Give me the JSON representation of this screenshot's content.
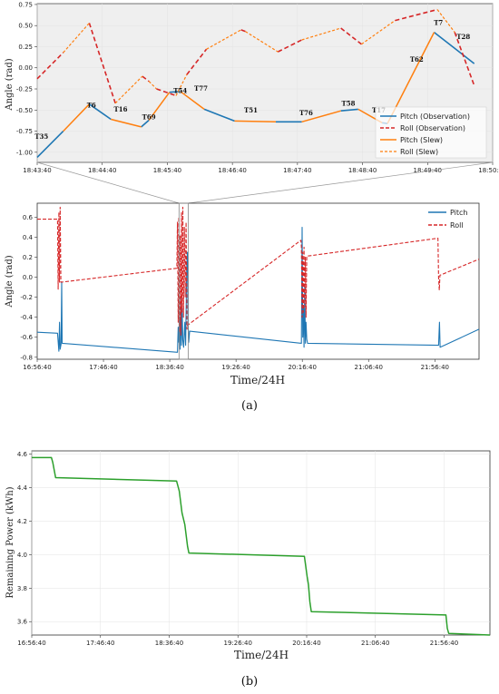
{
  "chart_data": [
    {
      "id": "top",
      "type": "line",
      "ylabel": "Angle (rad)",
      "xlabel": "",
      "background": "#efefef",
      "xlim": [
        "18:43:40",
        "18:50:40"
      ],
      "ylim": [
        -1.12,
        0.76
      ],
      "x_ticks": [
        "18:43:40",
        "18:44:40",
        "18:45:40",
        "18:46:40",
        "18:47:40",
        "18:48:40",
        "18:49:40",
        "18:50:40"
      ],
      "y_ticks": [
        "-1.00",
        "-0.75",
        "-0.50",
        "-0.25",
        "0.00",
        "0.25",
        "0.50",
        "0.75"
      ],
      "y_tick_values": [
        -1.0,
        -0.75,
        -0.5,
        -0.25,
        0.0,
        0.25,
        0.5,
        0.75
      ],
      "legend": [
        "Pitch (Observation)",
        "Roll (Observation)",
        "Pitch (Slew)",
        "Roll (Slew)"
      ],
      "legend_position": "center-right",
      "colors": {
        "pitch_obs": "#1f77b4",
        "roll_obs": "#d62728",
        "pitch_slew": "#ff7f0e",
        "roll_slew": "#ff7f0e"
      },
      "annotations": [
        {
          "label": "T35",
          "x": "18:43:44",
          "y": -0.84
        },
        {
          "label": "T6",
          "x": "18:44:30",
          "y": -0.47
        },
        {
          "label": "T16",
          "x": "18:44:57",
          "y": -0.52
        },
        {
          "label": "T69",
          "x": "18:45:23",
          "y": -0.61
        },
        {
          "label": "T54",
          "x": "18:45:52",
          "y": -0.3
        },
        {
          "label": "T77",
          "x": "18:46:11",
          "y": -0.27
        },
        {
          "label": "T51",
          "x": "18:46:57",
          "y": -0.53
        },
        {
          "label": "T76",
          "x": "18:47:48",
          "y": -0.56
        },
        {
          "label": "T58",
          "x": "18:48:27",
          "y": -0.45
        },
        {
          "label": "T17",
          "x": "18:48:55",
          "y": -0.53
        },
        {
          "label": "T62",
          "x": "18:49:30",
          "y": 0.07
        },
        {
          "label": "T7",
          "x": "18:49:50",
          "y": 0.51
        },
        {
          "label": "T28",
          "x": "18:50:13",
          "y": 0.34
        }
      ],
      "series": [
        {
          "name": "Pitch (Observation)",
          "segments": [
            [
              [
                "18:43:40",
                -1.06
              ],
              [
                "18:44:04",
                -0.75
              ]
            ],
            [
              [
                "18:44:28",
                -0.43
              ],
              [
                "18:44:48",
                -0.61
              ]
            ],
            [
              [
                "18:45:16",
                -0.7
              ],
              [
                "18:45:23",
                -0.62
              ]
            ],
            [
              [
                "18:45:42",
                -0.29
              ],
              [
                "18:45:52",
                -0.28
              ]
            ],
            [
              [
                "18:46:14",
                -0.49
              ],
              [
                "18:46:42",
                -0.63
              ]
            ],
            [
              [
                "18:47:20",
                -0.64
              ],
              [
                "18:47:44",
                -0.64
              ]
            ],
            [
              [
                "18:48:20",
                -0.51
              ],
              [
                "18:48:36",
                -0.49
              ]
            ],
            [
              [
                "18:48:58",
                -0.65
              ],
              [
                "18:49:03",
                -0.66
              ]
            ],
            [
              [
                "18:49:46",
                0.42
              ],
              [
                "18:50:23",
                0.05
              ]
            ]
          ]
        },
        {
          "name": "Roll (Observation)",
          "segments": [
            [
              [
                "18:43:40",
                -0.13
              ],
              [
                "18:44:04",
                0.18
              ]
            ],
            [
              [
                "18:44:28",
                0.53
              ],
              [
                "18:44:52",
                -0.42
              ]
            ],
            [
              [
                "18:45:17",
                -0.1
              ],
              [
                "18:45:23",
                -0.16
              ]
            ],
            [
              [
                "18:45:30",
                -0.25
              ],
              [
                "18:45:48",
                -0.33
              ]
            ],
            [
              [
                "18:45:58",
                -0.08
              ],
              [
                "18:46:16",
                0.22
              ]
            ],
            [
              [
                "18:46:48",
                0.45
              ],
              [
                "18:46:52",
                0.43
              ]
            ],
            [
              [
                "18:47:22",
                0.19
              ],
              [
                "18:47:44",
                0.33
              ]
            ],
            [
              [
                "18:48:20",
                0.47
              ],
              [
                "18:48:39",
                0.28
              ]
            ],
            [
              [
                "18:49:10",
                0.56
              ],
              [
                "18:49:49",
                0.69
              ]
            ],
            [
              [
                "18:50:05",
                0.42
              ],
              [
                "18:50:23",
                -0.21
              ]
            ]
          ]
        },
        {
          "name": "Pitch (Slew)",
          "segments": [
            [
              [
                "18:44:04",
                -0.75
              ],
              [
                "18:44:28",
                -0.43
              ]
            ],
            [
              [
                "18:44:48",
                -0.61
              ],
              [
                "18:45:16",
                -0.7
              ]
            ],
            [
              [
                "18:45:23",
                -0.62
              ],
              [
                "18:45:42",
                -0.29
              ]
            ],
            [
              [
                "18:45:52",
                -0.28
              ],
              [
                "18:46:14",
                -0.49
              ]
            ],
            [
              [
                "18:46:42",
                -0.63
              ],
              [
                "18:47:20",
                -0.64
              ]
            ],
            [
              [
                "18:47:44",
                -0.64
              ],
              [
                "18:48:20",
                -0.51
              ]
            ],
            [
              [
                "18:48:36",
                -0.49
              ],
              [
                "18:48:58",
                -0.65
              ]
            ],
            [
              [
                "18:49:03",
                -0.66
              ],
              [
                "18:49:46",
                0.42
              ]
            ]
          ]
        },
        {
          "name": "Roll (Slew)",
          "segments": [
            [
              [
                "18:44:04",
                0.18
              ],
              [
                "18:44:28",
                0.53
              ]
            ],
            [
              [
                "18:44:52",
                -0.42
              ],
              [
                "18:45:17",
                -0.1
              ]
            ],
            [
              [
                "18:45:23",
                -0.16
              ],
              [
                "18:45:30",
                -0.25
              ]
            ],
            [
              [
                "18:45:48",
                -0.33
              ],
              [
                "18:45:58",
                -0.08
              ]
            ],
            [
              [
                "18:46:16",
                0.22
              ],
              [
                "18:46:48",
                0.45
              ]
            ],
            [
              [
                "18:46:52",
                0.43
              ],
              [
                "18:47:22",
                0.19
              ]
            ],
            [
              [
                "18:47:44",
                0.33
              ],
              [
                "18:48:20",
                0.47
              ]
            ],
            [
              [
                "18:48:39",
                0.28
              ],
              [
                "18:49:10",
                0.56
              ]
            ],
            [
              [
                "18:49:49",
                0.69
              ],
              [
                "18:50:05",
                0.42
              ]
            ]
          ]
        }
      ]
    },
    {
      "id": "middle",
      "type": "line",
      "ylabel": "Angle (rad)",
      "xlabel": "Time/24H",
      "xlim": [
        "16:56:40",
        "22:30:00"
      ],
      "ylim": [
        -0.82,
        0.74
      ],
      "x_ticks": [
        "16:56:40",
        "17:46:40",
        "18:36:40",
        "19:26:40",
        "20:16:40",
        "21:06:40",
        "21:56:40"
      ],
      "y_ticks": [
        "-0.8",
        "-0.6",
        "-0.4",
        "-0.2",
        "0.0",
        "0.2",
        "0.4",
        "0.6"
      ],
      "y_tick_values": [
        -0.8,
        -0.6,
        -0.4,
        -0.2,
        0.0,
        0.2,
        0.4,
        0.6
      ],
      "legend": [
        "Pitch",
        "Roll"
      ],
      "legend_position": "top-right",
      "zoom_window": [
        "18:43:40",
        "18:50:40"
      ],
      "colors": {
        "pitch": "#1f77b4",
        "roll": "#d62728"
      },
      "series": [
        {
          "name": "Pitch",
          "points": [
            [
              "16:56:40",
              -0.55
            ],
            [
              "17:12:00",
              -0.56
            ],
            [
              "17:13:00",
              -0.74
            ],
            [
              "17:13:30",
              -0.45
            ],
            [
              "17:14:00",
              -0.72
            ],
            [
              "17:14:40",
              -0.67
            ],
            [
              "17:15:10",
              -0.05
            ],
            [
              "17:15:30",
              -0.66
            ],
            [
              "18:42:30",
              -0.75
            ],
            [
              "18:43:00",
              -0.5
            ],
            [
              "18:43:30",
              -0.65
            ],
            [
              "18:44:00",
              -0.4
            ],
            [
              "18:44:30",
              -0.72
            ],
            [
              "18:45:00",
              -0.2
            ],
            [
              "18:45:30",
              -0.68
            ],
            [
              "18:46:00",
              -0.3
            ],
            [
              "18:46:30",
              -0.63
            ],
            [
              "18:47:10",
              -0.7
            ],
            [
              "18:48:00",
              -0.45
            ],
            [
              "18:48:40",
              -0.68
            ],
            [
              "18:49:30",
              0.1
            ],
            [
              "18:50:00",
              0.25
            ],
            [
              "18:50:30",
              -0.45
            ],
            [
              "18:51:00",
              -0.65
            ],
            [
              "18:51:40",
              -0.54
            ],
            [
              "20:16:00",
              -0.66
            ],
            [
              "20:16:30",
              0.5
            ],
            [
              "20:17:00",
              -0.6
            ],
            [
              "20:17:30",
              -0.28
            ],
            [
              "20:18:00",
              -0.7
            ],
            [
              "20:18:30",
              -0.1
            ],
            [
              "20:19:00",
              -0.66
            ],
            [
              "20:19:30",
              -0.45
            ],
            [
              "20:20:00",
              -0.62
            ],
            [
              "20:20:40",
              -0.66
            ],
            [
              "21:59:30",
              -0.68
            ],
            [
              "22:00:10",
              -0.45
            ],
            [
              "22:00:40",
              -0.7
            ],
            [
              "22:30:00",
              -0.52
            ]
          ]
        },
        {
          "name": "Roll",
          "points": [
            [
              "16:56:40",
              0.58
            ],
            [
              "17:12:00",
              0.58
            ],
            [
              "17:12:30",
              -0.12
            ],
            [
              "17:13:00",
              0.65
            ],
            [
              "17:13:30",
              -0.05
            ],
            [
              "17:14:00",
              0.7
            ],
            [
              "17:14:30",
              -0.05
            ],
            [
              "18:42:00",
              0.09
            ],
            [
              "18:42:30",
              0.55
            ],
            [
              "18:43:00",
              -0.45
            ],
            [
              "18:43:30",
              0.6
            ],
            [
              "18:44:00",
              -0.55
            ],
            [
              "18:44:30",
              0.42
            ],
            [
              "18:45:00",
              -0.58
            ],
            [
              "18:45:30",
              0.65
            ],
            [
              "18:46:00",
              -0.35
            ],
            [
              "18:46:30",
              0.7
            ],
            [
              "18:47:00",
              -0.4
            ],
            [
              "18:47:40",
              0.5
            ],
            [
              "18:48:20",
              -0.2
            ],
            [
              "18:49:00",
              0.55
            ],
            [
              "18:49:40",
              -0.52
            ],
            [
              "18:50:10",
              -0.48
            ],
            [
              "20:15:40",
              0.37
            ],
            [
              "20:16:00",
              0.3
            ],
            [
              "20:16:30",
              -0.4
            ],
            [
              "20:17:00",
              0.25
            ],
            [
              "20:17:30",
              -0.35
            ],
            [
              "20:18:00",
              0.3
            ],
            [
              "20:18:30",
              -0.3
            ],
            [
              "20:19:00",
              0.2
            ],
            [
              "20:19:30",
              -0.4
            ],
            [
              "20:20:00",
              0.21
            ],
            [
              "21:59:00",
              0.39
            ],
            [
              "21:59:30",
              0.0
            ],
            [
              "22:00:00",
              -0.13
            ],
            [
              "22:00:30",
              0.02
            ],
            [
              "22:30:00",
              0.18
            ]
          ]
        }
      ]
    },
    {
      "id": "bottom",
      "type": "line",
      "ylabel": "Remaining Power (kWh)",
      "xlabel": "Time/24H",
      "xlim": [
        "16:56:40",
        "22:30:00"
      ],
      "ylim": [
        3.52,
        4.62
      ],
      "x_ticks": [
        "16:56:40",
        "17:46:40",
        "18:36:40",
        "19:26:40",
        "20:16:40",
        "21:06:40",
        "21:56:40"
      ],
      "y_ticks": [
        "3.6",
        "3.8",
        "4.0",
        "4.2",
        "4.4",
        "4.6"
      ],
      "y_tick_values": [
        3.6,
        3.8,
        4.0,
        4.2,
        4.4,
        4.6
      ],
      "colors": {
        "power": "#2ca02c"
      },
      "series": [
        {
          "name": "",
          "points": [
            [
              "16:56:40",
              4.58
            ],
            [
              "17:11:00",
              4.58
            ],
            [
              "17:12:00",
              4.55
            ],
            [
              "17:14:00",
              4.46
            ],
            [
              "18:42:00",
              4.44
            ],
            [
              "18:44:00",
              4.38
            ],
            [
              "18:46:00",
              4.25
            ],
            [
              "18:48:00",
              4.18
            ],
            [
              "18:50:00",
              4.05
            ],
            [
              "18:51:00",
              4.01
            ],
            [
              "20:15:00",
              3.99
            ],
            [
              "20:16:00",
              3.93
            ],
            [
              "20:17:00",
              3.87
            ],
            [
              "20:18:00",
              3.82
            ],
            [
              "20:19:00",
              3.72
            ],
            [
              "20:20:00",
              3.66
            ],
            [
              "21:58:00",
              3.64
            ],
            [
              "21:59:00",
              3.56
            ],
            [
              "22:00:00",
              3.53
            ],
            [
              "22:30:00",
              3.52
            ]
          ]
        }
      ]
    }
  ],
  "captions": {
    "a": "(a)",
    "b": "(b)"
  }
}
